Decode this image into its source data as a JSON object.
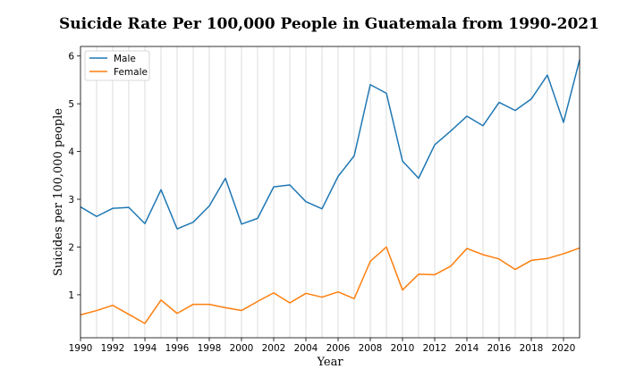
{
  "chart_data": {
    "type": "line",
    "title": "Suicide Rate Per 100,000 People in Guatemala from 1990-2021",
    "xlabel": "Year",
    "ylabel": "Suicides per 100,000 people",
    "xlim": [
      1990,
      2021
    ],
    "ylim": [
      0.1,
      6.2
    ],
    "x_ticks": [
      1990,
      1992,
      1994,
      1996,
      1998,
      2000,
      2002,
      2004,
      2006,
      2008,
      2010,
      2012,
      2014,
      2016,
      2018,
      2020
    ],
    "y_ticks": [
      1,
      2,
      3,
      4,
      5,
      6
    ],
    "grid": "vertical",
    "legend_position": "top-left",
    "x": [
      1990,
      1991,
      1992,
      1993,
      1994,
      1995,
      1996,
      1997,
      1998,
      1999,
      2000,
      2001,
      2002,
      2003,
      2004,
      2005,
      2006,
      2007,
      2008,
      2009,
      2010,
      2011,
      2012,
      2013,
      2014,
      2015,
      2016,
      2017,
      2018,
      2019,
      2020,
      2021
    ],
    "series": [
      {
        "name": "Male",
        "color": "#1f77b4",
        "values": [
          2.84,
          2.64,
          2.81,
          2.83,
          2.49,
          3.2,
          2.38,
          2.52,
          2.86,
          3.44,
          2.48,
          2.6,
          3.26,
          3.3,
          2.95,
          2.8,
          3.48,
          3.91,
          5.4,
          5.22,
          3.8,
          3.44,
          4.14,
          4.43,
          4.74,
          4.54,
          5.03,
          4.86,
          5.1,
          5.6,
          4.61,
          5.92
        ]
      },
      {
        "name": "Female",
        "color": "#ff7f0e",
        "values": [
          0.58,
          0.67,
          0.78,
          0.59,
          0.4,
          0.89,
          0.61,
          0.8,
          0.8,
          0.73,
          0.67,
          0.86,
          1.04,
          0.83,
          1.03,
          0.95,
          1.06,
          0.92,
          1.7,
          2.0,
          1.1,
          1.43,
          1.42,
          1.6,
          1.97,
          1.84,
          1.75,
          1.53,
          1.72,
          1.76,
          1.86,
          1.98
        ]
      }
    ]
  }
}
